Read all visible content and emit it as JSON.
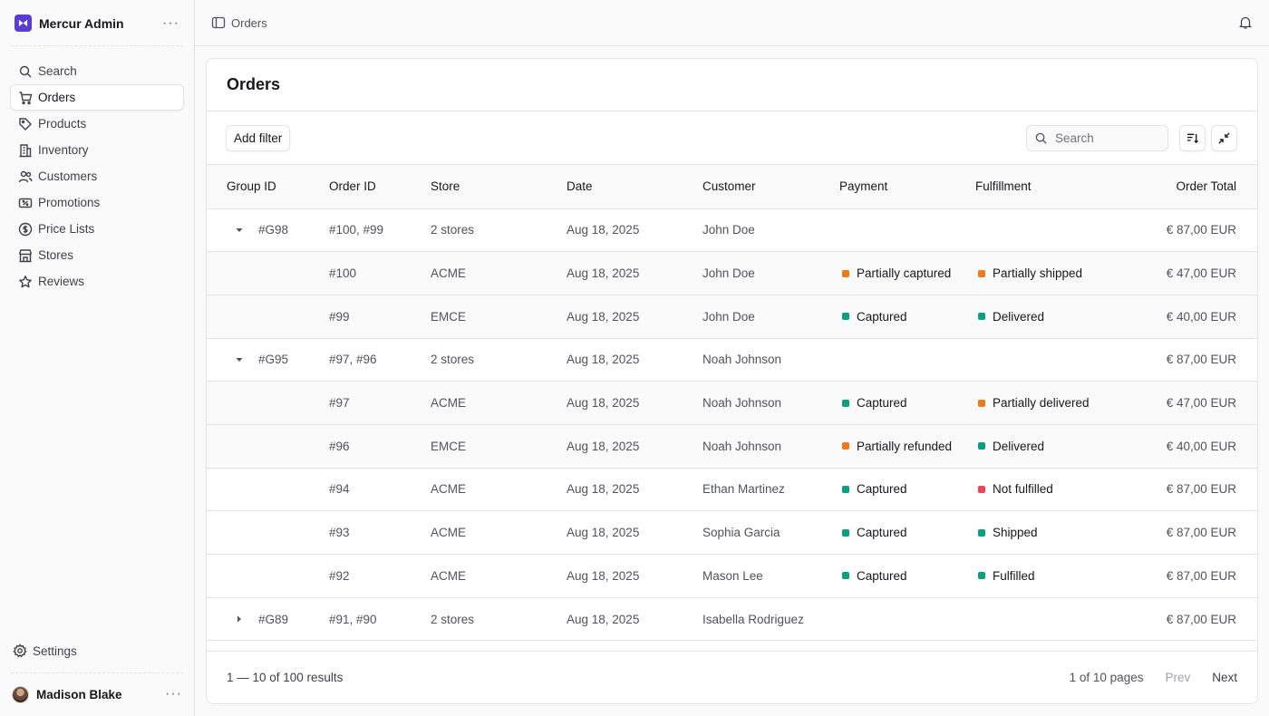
{
  "app": {
    "name": "Mercur Admin"
  },
  "colors": {
    "accent": "#5b3bd8",
    "orange": "#f07a1a",
    "green": "#0e9f7e",
    "red": "#ef4458"
  },
  "sidebar": {
    "items": [
      {
        "label": "Search",
        "icon": "search-icon"
      },
      {
        "label": "Orders",
        "icon": "cart-icon",
        "active": true
      },
      {
        "label": "Products",
        "icon": "tag-icon"
      },
      {
        "label": "Inventory",
        "icon": "building-icon"
      },
      {
        "label": "Customers",
        "icon": "users-icon"
      },
      {
        "label": "Promotions",
        "icon": "receipt-percent-icon"
      },
      {
        "label": "Price Lists",
        "icon": "currency-dollar-icon"
      },
      {
        "label": "Stores",
        "icon": "buildings-icon"
      },
      {
        "label": "Reviews",
        "icon": "star-icon"
      }
    ],
    "settings_label": "Settings",
    "user_name": "Madison Blake"
  },
  "topbar": {
    "breadcrumb": "Orders"
  },
  "page": {
    "title": "Orders"
  },
  "toolbar": {
    "add_filter_label": "Add filter",
    "search_placeholder": "Search"
  },
  "table": {
    "columns": [
      "Group ID",
      "Order ID",
      "Store",
      "Date",
      "Customer",
      "Payment",
      "Fulfillment",
      "Order Total"
    ],
    "rows": [
      {
        "type": "group",
        "expanded": true,
        "group_id": "#G98",
        "order_id": "#100, #99",
        "store": "2 stores",
        "date": "Aug 18, 2025",
        "customer": "John Doe",
        "payment": "",
        "fulfillment": "",
        "total": "€ 87,00 EUR"
      },
      {
        "type": "child",
        "group_id": "",
        "order_id": "#100",
        "store": "ACME",
        "date": "Aug 18, 2025",
        "customer": "John Doe",
        "payment": "Partially captured",
        "payment_color": "orange",
        "fulfillment": "Partially shipped",
        "fulfillment_color": "orange",
        "total": "€ 47,00 EUR"
      },
      {
        "type": "child",
        "group_id": "",
        "order_id": "#99",
        "store": "EMCE",
        "date": "Aug 18, 2025",
        "customer": "John Doe",
        "payment": "Captured",
        "payment_color": "green",
        "fulfillment": "Delivered",
        "fulfillment_color": "green",
        "total": "€ 40,00 EUR"
      },
      {
        "type": "group",
        "expanded": true,
        "group_id": "#G95",
        "order_id": "#97, #96",
        "store": "2 stores",
        "date": "Aug 18, 2025",
        "customer": "Noah Johnson",
        "payment": "",
        "fulfillment": "",
        "total": "€ 87,00 EUR"
      },
      {
        "type": "child",
        "group_id": "",
        "order_id": "#97",
        "store": "ACME",
        "date": "Aug 18, 2025",
        "customer": "Noah Johnson",
        "payment": "Captured",
        "payment_color": "green",
        "fulfillment": "Partially delivered",
        "fulfillment_color": "orange",
        "total": "€ 47,00 EUR"
      },
      {
        "type": "child",
        "group_id": "",
        "order_id": "#96",
        "store": "EMCE",
        "date": "Aug 18, 2025",
        "customer": "Noah Johnson",
        "payment": "Partially refunded",
        "payment_color": "orange",
        "fulfillment": "Delivered",
        "fulfillment_color": "green",
        "total": "€ 40,00 EUR"
      },
      {
        "type": "single",
        "group_id": "",
        "order_id": "#94",
        "store": "ACME",
        "date": "Aug 18, 2025",
        "customer": "Ethan Martinez",
        "payment": "Captured",
        "payment_color": "green",
        "fulfillment": "Not fulfilled",
        "fulfillment_color": "red",
        "total": "€ 87,00 EUR"
      },
      {
        "type": "single",
        "group_id": "",
        "order_id": "#93",
        "store": "ACME",
        "date": "Aug 18, 2025",
        "customer": "Sophia Garcia",
        "payment": "Captured",
        "payment_color": "green",
        "fulfillment": "Shipped",
        "fulfillment_color": "green",
        "total": "€ 87,00 EUR"
      },
      {
        "type": "single",
        "group_id": "",
        "order_id": "#92",
        "store": "ACME",
        "date": "Aug 18, 2025",
        "customer": "Mason Lee",
        "payment": "Captured",
        "payment_color": "green",
        "fulfillment": "Fulfilled",
        "fulfillment_color": "green",
        "total": "€ 87,00 EUR"
      },
      {
        "type": "group",
        "expanded": false,
        "group_id": "#G89",
        "order_id": "#91, #90",
        "store": "2 stores",
        "date": "Aug 18, 2025",
        "customer": "Isabella Rodriguez",
        "payment": "",
        "fulfillment": "",
        "total": "€ 87,00 EUR"
      }
    ]
  },
  "pagination": {
    "results": "1 — 10 of 100 results",
    "pages": "1 of 10 pages",
    "prev": "Prev",
    "next": "Next"
  }
}
